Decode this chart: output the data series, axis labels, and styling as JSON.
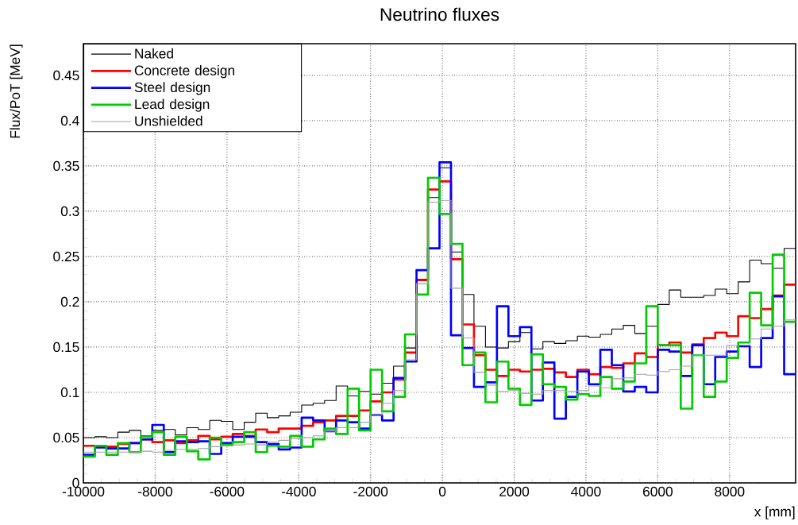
{
  "chart_data": {
    "type": "histogram",
    "title": "Neutrino fluxes",
    "xlabel": "x [mm]",
    "ylabel": "Flux/PoT [MeV]",
    "bins": [
      -10000,
      -9680,
      -9360,
      -9040,
      -8720,
      -8400,
      -8080,
      -7760,
      -7440,
      -7120,
      -6800,
      -6480,
      -6160,
      -5840,
      -5520,
      -5200,
      -4880,
      -4560,
      -4240,
      -3920,
      -3600,
      -3280,
      -2960,
      -2640,
      -2320,
      -2000,
      -1680,
      -1360,
      -1040,
      -720,
      -400,
      -80,
      240,
      560,
      880,
      1200,
      1520,
      1840,
      2160,
      2480,
      2800,
      3120,
      3440,
      3760,
      4080,
      4400,
      4720,
      5040,
      5360,
      5680,
      6000,
      6320,
      6640,
      6960,
      7280,
      7600,
      7920,
      8240,
      8560,
      8880,
      9200,
      9520,
      9840
    ],
    "series": [
      {
        "name": "Naked",
        "color": "#000000",
        "values": [
          0.05,
          0.051,
          0.05,
          0.056,
          0.058,
          0.052,
          0.058,
          0.059,
          0.053,
          0.061,
          0.059,
          0.069,
          0.068,
          0.059,
          0.067,
          0.077,
          0.072,
          0.074,
          0.078,
          0.086,
          0.088,
          0.091,
          0.107,
          0.096,
          0.101,
          0.098,
          0.11,
          0.129,
          0.149,
          0.225,
          0.315,
          0.348,
          0.255,
          0.208,
          0.173,
          0.15,
          0.149,
          0.156,
          0.166,
          0.148,
          0.156,
          0.154,
          0.157,
          0.162,
          0.161,
          0.164,
          0.17,
          0.174,
          0.165,
          0.173,
          0.197,
          0.213,
          0.205,
          0.205,
          0.207,
          0.214,
          0.209,
          0.222,
          0.246,
          0.242,
          0.237,
          0.259
        ]
      },
      {
        "name": "Concrete design",
        "color": "#ff0000",
        "values": [
          0.041,
          0.04,
          0.04,
          0.043,
          0.044,
          0.048,
          0.045,
          0.047,
          0.044,
          0.047,
          0.052,
          0.048,
          0.051,
          0.054,
          0.052,
          0.059,
          0.056,
          0.06,
          0.06,
          0.063,
          0.067,
          0.069,
          0.074,
          0.074,
          0.08,
          0.09,
          0.1,
          0.114,
          0.144,
          0.224,
          0.324,
          0.333,
          0.247,
          0.175,
          0.141,
          0.125,
          0.118,
          0.125,
          0.123,
          0.125,
          0.126,
          0.122,
          0.117,
          0.125,
          0.12,
          0.128,
          0.127,
          0.132,
          0.143,
          0.139,
          0.152,
          0.155,
          0.144,
          0.153,
          0.16,
          0.166,
          0.162,
          0.184,
          0.182,
          0.192,
          0.207,
          0.219
        ]
      },
      {
        "name": "Steel design",
        "color": "#0000ff",
        "values": [
          0.031,
          0.039,
          0.038,
          0.038,
          0.044,
          0.048,
          0.064,
          0.034,
          0.046,
          0.045,
          0.046,
          0.032,
          0.044,
          0.051,
          0.051,
          0.045,
          0.043,
          0.037,
          0.039,
          0.072,
          0.069,
          0.057,
          0.069,
          0.067,
          0.06,
          0.075,
          0.069,
          0.116,
          0.134,
          0.235,
          0.259,
          0.354,
          0.163,
          0.149,
          0.106,
          0.111,
          0.195,
          0.162,
          0.172,
          0.091,
          0.133,
          0.071,
          0.095,
          0.123,
          0.109,
          0.147,
          0.13,
          0.101,
          0.106,
          0.1,
          0.147,
          0.145,
          0.118,
          0.152,
          0.109,
          0.139,
          0.145,
          0.151,
          0.128,
          0.16,
          0.206,
          0.12
        ]
      },
      {
        "name": "Lead design",
        "color": "#00cc00",
        "values": [
          0.029,
          0.041,
          0.031,
          0.044,
          0.034,
          0.051,
          0.056,
          0.031,
          0.051,
          0.035,
          0.026,
          0.05,
          0.042,
          0.045,
          0.056,
          0.034,
          0.041,
          0.04,
          0.052,
          0.04,
          0.048,
          0.06,
          0.054,
          0.104,
          0.058,
          0.125,
          0.079,
          0.095,
          0.164,
          0.208,
          0.337,
          0.297,
          0.264,
          0.13,
          0.144,
          0.089,
          0.134,
          0.104,
          0.086,
          0.142,
          0.109,
          0.106,
          0.092,
          0.098,
          0.096,
          0.117,
          0.104,
          0.112,
          0.132,
          0.195,
          0.152,
          0.152,
          0.082,
          0.141,
          0.095,
          0.112,
          0.138,
          0.155,
          0.21,
          0.174,
          0.252,
          0.178
        ]
      },
      {
        "name": "Unshielded",
        "color": "#a0a0a0",
        "values": [
          0.034,
          0.034,
          0.034,
          0.034,
          0.034,
          0.035,
          0.034,
          0.036,
          0.037,
          0.037,
          0.038,
          0.04,
          0.041,
          0.042,
          0.043,
          0.042,
          0.045,
          0.047,
          0.049,
          0.05,
          0.052,
          0.057,
          0.061,
          0.061,
          0.067,
          0.075,
          0.088,
          0.102,
          0.136,
          0.22,
          0.31,
          0.312,
          0.215,
          0.16,
          0.122,
          0.108,
          0.101,
          0.102,
          0.099,
          0.098,
          0.102,
          0.102,
          0.101,
          0.102,
          0.107,
          0.105,
          0.115,
          0.116,
          0.12,
          0.119,
          0.123,
          0.125,
          0.129,
          0.141,
          0.141,
          0.141,
          0.152,
          0.152,
          0.159,
          0.17,
          0.173,
          0.18
        ]
      }
    ],
    "xlim": [
      -10000,
      9840
    ],
    "ylim": [
      0,
      0.485
    ],
    "xticks": [
      -10000,
      -8000,
      -6000,
      -4000,
      -2000,
      0,
      2000,
      4000,
      6000,
      8000
    ],
    "yticks": [
      0,
      0.05,
      0.1,
      0.15,
      0.2,
      0.25,
      0.3,
      0.35,
      0.4,
      0.45
    ],
    "grid": true,
    "legend": "top left"
  }
}
